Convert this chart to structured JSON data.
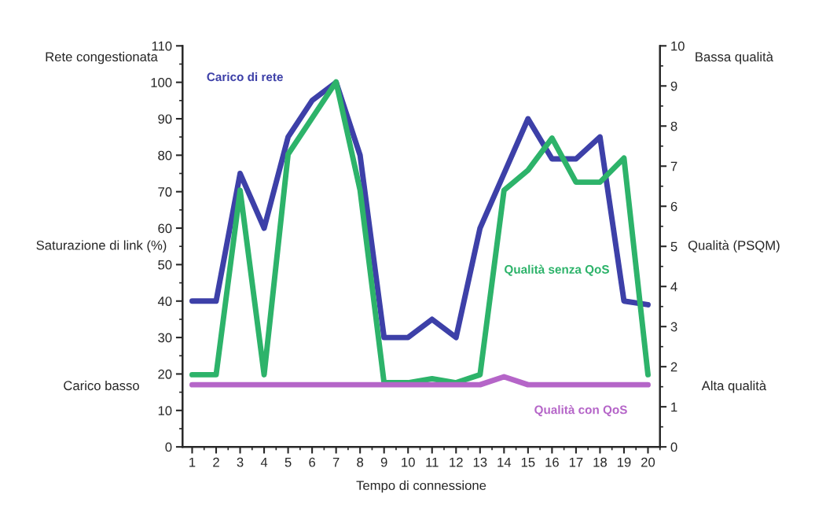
{
  "chart_data": {
    "type": "line",
    "xlabel": "Tempo di connessione",
    "ylabel": "Saturazione di link (%)",
    "y2label": "Qualità (PSQM)",
    "annotations": [
      "Rete congestionata",
      "Carico basso",
      "Bassa qualità",
      "Alta qualità"
    ],
    "x": [
      1,
      2,
      3,
      4,
      5,
      6,
      7,
      8,
      9,
      10,
      11,
      12,
      13,
      14,
      15,
      16,
      17,
      18,
      19,
      20
    ],
    "xlim": [
      0.6,
      20.5
    ],
    "xticks": [
      1,
      2,
      3,
      4,
      5,
      6,
      7,
      8,
      9,
      10,
      11,
      12,
      13,
      14,
      15,
      16,
      17,
      18,
      19,
      20
    ],
    "ylim": [
      0,
      110
    ],
    "yticks": [
      0,
      10,
      20,
      30,
      40,
      50,
      60,
      70,
      80,
      90,
      100,
      110
    ],
    "y2lim": [
      0,
      10
    ],
    "y2ticks": [
      0,
      1,
      2,
      3,
      4,
      5,
      6,
      7,
      8,
      9,
      10
    ],
    "grid": false,
    "legend": false,
    "marker": "none",
    "line_style": "solid",
    "series": [
      {
        "name": "Carico di rete",
        "color": "#3d40a8",
        "values": [
          40,
          40,
          75,
          60,
          85,
          95,
          100,
          80,
          30,
          30,
          35,
          30,
          60,
          75,
          90,
          79,
          79,
          85,
          40,
          39
        ]
      },
      {
        "name": "Qualità senza QoS",
        "color": "#2db36a",
        "axis": "y2",
        "values": [
          1.8,
          1.8,
          6.4,
          1.8,
          7.3,
          8.2,
          9.1,
          6.4,
          1.6,
          1.6,
          1.7,
          1.6,
          1.8,
          6.4,
          6.9,
          7.7,
          6.6,
          6.6,
          7.2,
          1.8
        ]
      },
      {
        "name": "Qualità con QoS",
        "color": "#b565c8",
        "axis": "y2",
        "values": [
          1.55,
          1.55,
          1.55,
          1.55,
          1.55,
          1.55,
          1.55,
          1.55,
          1.55,
          1.55,
          1.55,
          1.55,
          1.55,
          1.75,
          1.55,
          1.55,
          1.55,
          1.55,
          1.55,
          1.55
        ]
      }
    ]
  }
}
